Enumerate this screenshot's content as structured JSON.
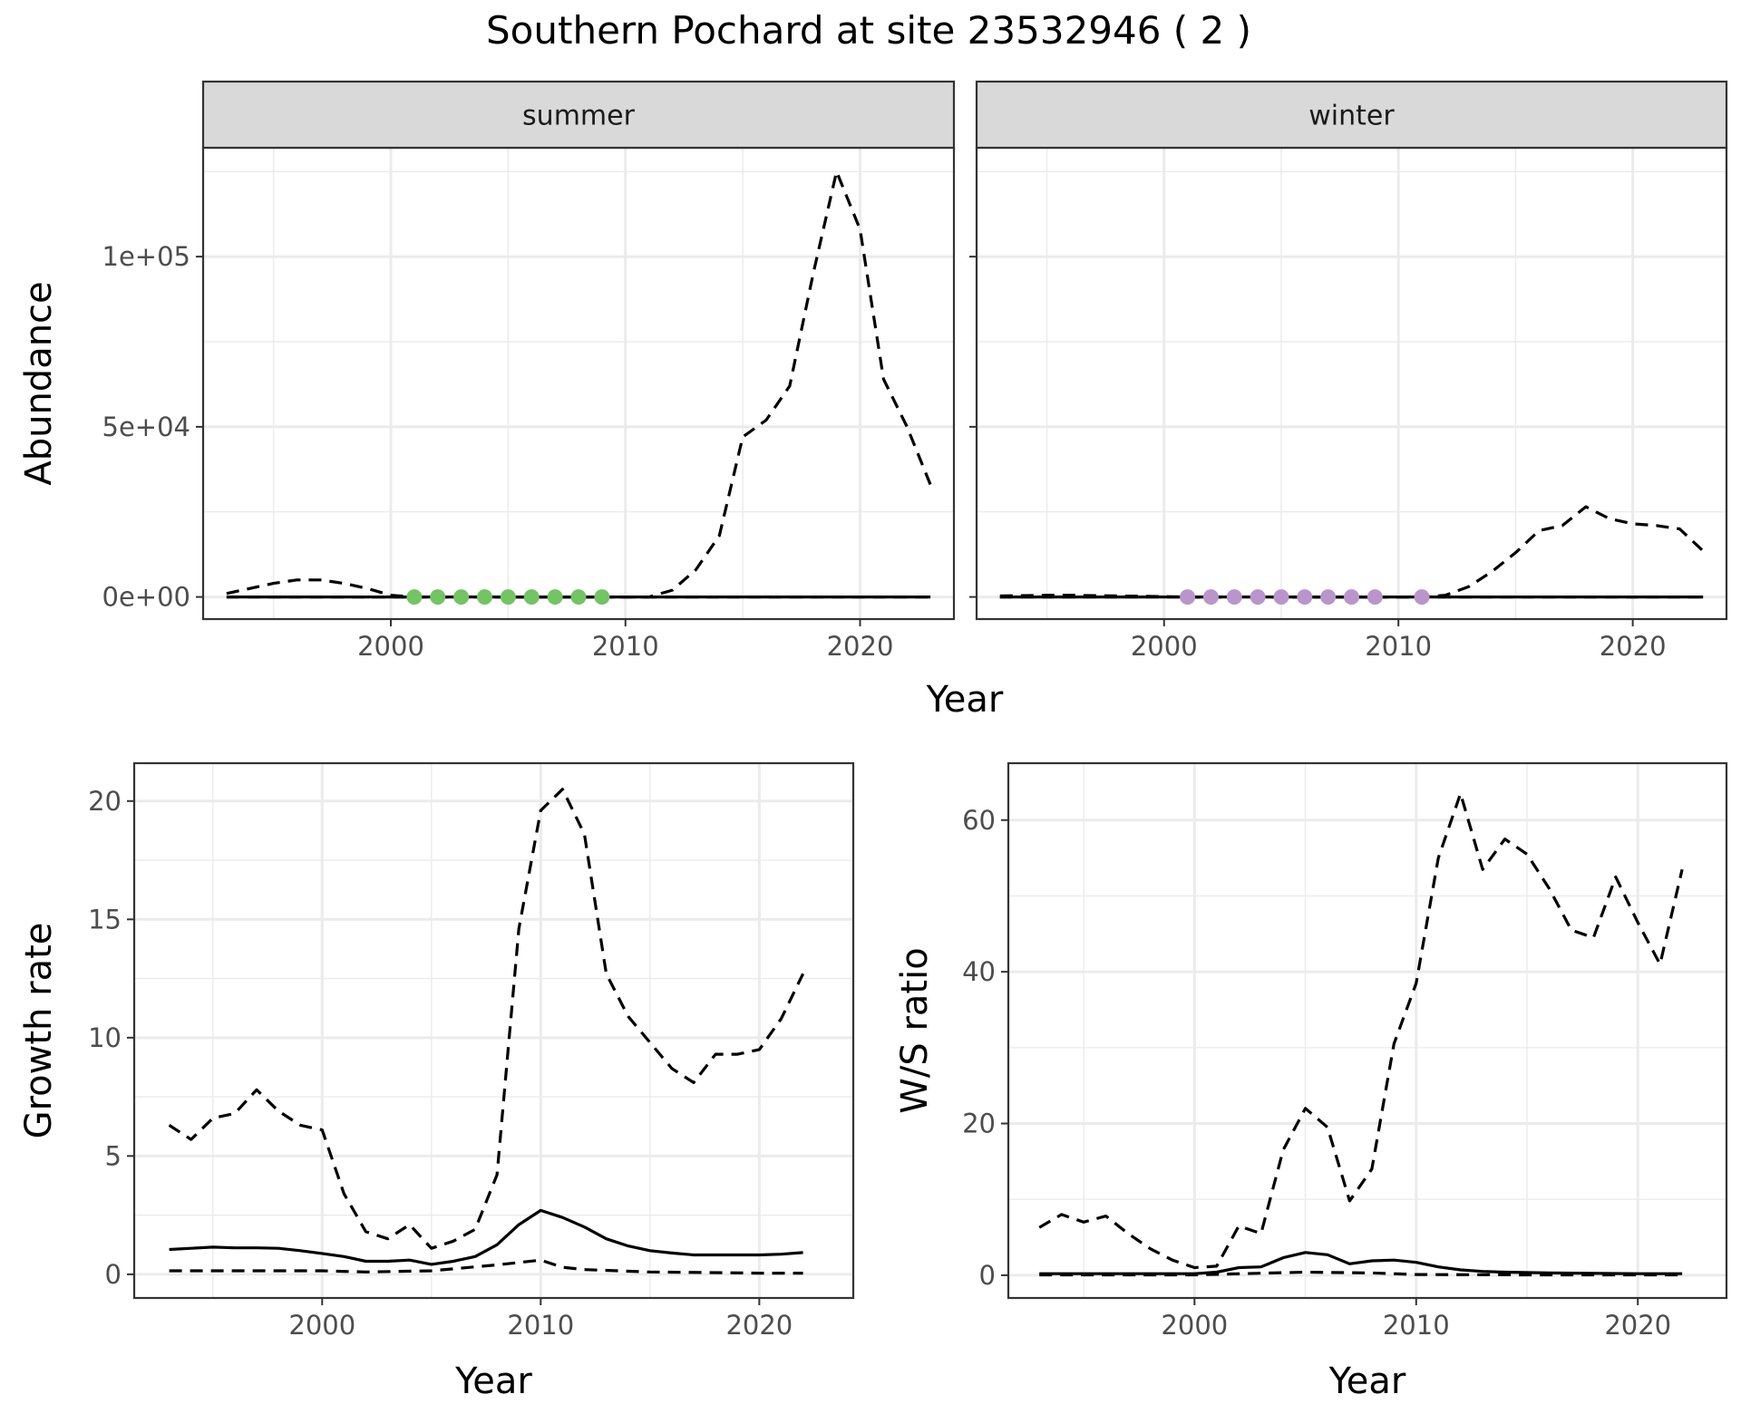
{
  "title": "Southern Pochard at site 23532946 ( 2 )",
  "colors": {
    "summer_points": "#74c365",
    "winter_points": "#b995cc",
    "line": "#000000",
    "strip_bg": "#d9d9d9",
    "grid": "#ebebeb"
  },
  "chart_data": [
    {
      "type": "line",
      "name": "abundance",
      "facets": [
        "summer",
        "winter"
      ],
      "xlabel": "Year",
      "ylabel": "Abundance",
      "x_ticks": [
        2000,
        2010,
        2020
      ],
      "y_ticks": [
        0,
        50000,
        100000
      ],
      "y_tick_labels": [
        "0e+00",
        "5e+04",
        "1e+05"
      ],
      "xlim": [
        1992,
        2024
      ],
      "ylim": [
        -6500,
        132000
      ],
      "grid": true,
      "panels": [
        {
          "facet": "summer",
          "point_color": "#74c365",
          "points": {
            "x": [
              2001,
              2002,
              2003,
              2004,
              2005,
              2006,
              2007,
              2008,
              2009
            ],
            "y": [
              0,
              0,
              0,
              0,
              0,
              0,
              0,
              0,
              0
            ]
          },
          "series": [
            {
              "style": "solid",
              "x": [
                1993,
                2000,
                2010,
                2020,
                2023
              ],
              "y": [
                0,
                0,
                0,
                0,
                0
              ]
            },
            {
              "style": "dashed",
              "x": [
                1993,
                1994,
                1995,
                1996,
                1997,
                1998,
                1999,
                2000,
                2001,
                2002,
                2003,
                2004,
                2005,
                2006,
                2007,
                2008,
                2009,
                2010,
                2011,
                2012,
                2013,
                2014,
                2015,
                2016,
                2017,
                2018,
                2019,
                2020,
                2021,
                2022,
                2023
              ],
              "y": [
                1000,
                2500,
                4000,
                5000,
                5000,
                4000,
                2500,
                500,
                0,
                0,
                0,
                0,
                0,
                0,
                0,
                0,
                0,
                0,
                0,
                2000,
                8000,
                18000,
                47000,
                52000,
                62000,
                95000,
                125000,
                108000,
                64000,
                50000,
                33000
              ]
            },
            {
              "style": "dashed",
              "x": [
                1993,
                2000,
                2010,
                2020,
                2023
              ],
              "y": [
                0,
                0,
                0,
                0,
                0
              ]
            }
          ]
        },
        {
          "facet": "winter",
          "point_color": "#b995cc",
          "points": {
            "x": [
              2001,
              2002,
              2003,
              2004,
              2005,
              2006,
              2007,
              2008,
              2009,
              2011
            ],
            "y": [
              0,
              0,
              0,
              0,
              0,
              0,
              0,
              0,
              0,
              0
            ]
          },
          "series": [
            {
              "style": "solid",
              "x": [
                1993,
                2000,
                2010,
                2020,
                2023
              ],
              "y": [
                0,
                0,
                0,
                0,
                0
              ]
            },
            {
              "style": "dashed",
              "x": [
                1993,
                1994,
                1995,
                1996,
                1997,
                1998,
                1999,
                2000,
                2001,
                2002,
                2003,
                2004,
                2005,
                2006,
                2007,
                2008,
                2009,
                2010,
                2011,
                2012,
                2013,
                2014,
                2015,
                2016,
                2017,
                2018,
                2019,
                2020,
                2021,
                2022,
                2023
              ],
              "y": [
                300,
                400,
                500,
                500,
                400,
                300,
                200,
                100,
                0,
                0,
                0,
                0,
                0,
                0,
                0,
                0,
                0,
                0,
                0,
                500,
                3000,
                7500,
                13000,
                19500,
                21000,
                26500,
                23000,
                21500,
                21000,
                20000,
                13500
              ]
            },
            {
              "style": "dashed",
              "x": [
                1993,
                2000,
                2010,
                2020,
                2023
              ],
              "y": [
                0,
                0,
                0,
                0,
                0
              ]
            }
          ]
        }
      ]
    },
    {
      "type": "line",
      "name": "growth",
      "xlabel": "Year",
      "ylabel": "Growth rate",
      "x_ticks": [
        2000,
        2010,
        2020
      ],
      "y_ticks": [
        0,
        5,
        10,
        15,
        20
      ],
      "y_tick_labels": [
        "0",
        "5",
        "10",
        "15",
        "20"
      ],
      "xlim": [
        1991.4,
        2024.3
      ],
      "ylim": [
        -1.0,
        21.6
      ],
      "grid": true,
      "series": [
        {
          "style": "solid",
          "x": [
            1993,
            1994,
            1995,
            1996,
            1997,
            1998,
            1999,
            2000,
            2001,
            2002,
            2003,
            2004,
            2005,
            2006,
            2007,
            2008,
            2009,
            2010,
            2011,
            2012,
            2013,
            2014,
            2015,
            2016,
            2017,
            2018,
            2019,
            2020,
            2021,
            2022
          ],
          "y": [
            1.05,
            1.1,
            1.15,
            1.12,
            1.12,
            1.1,
            1.0,
            0.88,
            0.75,
            0.55,
            0.55,
            0.6,
            0.42,
            0.55,
            0.75,
            1.25,
            2.1,
            2.7,
            2.4,
            2.0,
            1.5,
            1.2,
            1.0,
            0.9,
            0.82,
            0.82,
            0.82,
            0.82,
            0.85,
            0.92
          ]
        },
        {
          "style": "dashed",
          "x": [
            1993,
            1994,
            1995,
            1996,
            1997,
            1998,
            1999,
            2000,
            2001,
            2002,
            2003,
            2004,
            2005,
            2006,
            2007,
            2008,
            2009,
            2010,
            2011,
            2012,
            2013,
            2014,
            2015,
            2016,
            2017,
            2018,
            2019,
            2020,
            2021,
            2022
          ],
          "y": [
            6.3,
            5.7,
            6.6,
            6.8,
            7.8,
            6.9,
            6.3,
            6.1,
            3.4,
            1.8,
            1.5,
            2.1,
            1.1,
            1.4,
            1.9,
            4.2,
            14.6,
            19.6,
            20.5,
            18.6,
            12.7,
            10.9,
            9.8,
            8.7,
            8.1,
            9.3,
            9.3,
            9.5,
            10.8,
            12.7
          ]
        },
        {
          "style": "dashed",
          "x": [
            1993,
            1995,
            2000,
            2002,
            2005,
            2008,
            2010,
            2011,
            2012,
            2015,
            2020,
            2022
          ],
          "y": [
            0.15,
            0.15,
            0.15,
            0.1,
            0.15,
            0.4,
            0.6,
            0.3,
            0.2,
            0.1,
            0.05,
            0.05
          ]
        }
      ]
    },
    {
      "type": "line",
      "name": "ws_ratio",
      "xlabel": "Year",
      "ylabel": "W/S ratio",
      "x_ticks": [
        2000,
        2010,
        2020
      ],
      "y_ticks": [
        0,
        20,
        40,
        60
      ],
      "y_tick_labels": [
        "0",
        "20",
        "40",
        "60"
      ],
      "xlim": [
        1991.6,
        2024.0
      ],
      "ylim": [
        -3.0,
        67.5
      ],
      "grid": true,
      "series": [
        {
          "style": "solid",
          "x": [
            1993,
            1998,
            2000,
            2001,
            2002,
            2003,
            2004,
            2005,
            2006,
            2007,
            2008,
            2009,
            2010,
            2011,
            2012,
            2013,
            2014,
            2016,
            2020,
            2022
          ],
          "y": [
            0.2,
            0.2,
            0.2,
            0.4,
            1.0,
            1.1,
            2.3,
            3.0,
            2.7,
            1.5,
            1.9,
            2.0,
            1.7,
            1.1,
            0.7,
            0.5,
            0.4,
            0.3,
            0.2,
            0.2
          ]
        },
        {
          "style": "dashed",
          "x": [
            1993,
            1994,
            1995,
            1996,
            1997,
            1998,
            1999,
            2000,
            2001,
            2002,
            2003,
            2004,
            2005,
            2006,
            2007,
            2008,
            2009,
            2010,
            2011,
            2012,
            2013,
            2014,
            2015,
            2016,
            2017,
            2018,
            2019,
            2020,
            2021,
            2022
          ],
          "y": [
            6.3,
            8.0,
            7.0,
            7.8,
            5.5,
            3.5,
            2.0,
            1.0,
            1.2,
            6.5,
            5.5,
            16.5,
            22.0,
            19.5,
            9.8,
            14.0,
            30.5,
            38.5,
            55.0,
            63.5,
            53.5,
            57.5,
            55.5,
            51.0,
            45.5,
            44.5,
            52.5,
            46.5,
            41.0,
            53.5
          ]
        },
        {
          "style": "dashed",
          "x": [
            1993,
            2000,
            2005,
            2008,
            2010,
            2015,
            2020,
            2022
          ],
          "y": [
            0.05,
            0.05,
            0.4,
            0.3,
            0.1,
            0.05,
            0.05,
            0.05
          ]
        }
      ]
    }
  ]
}
